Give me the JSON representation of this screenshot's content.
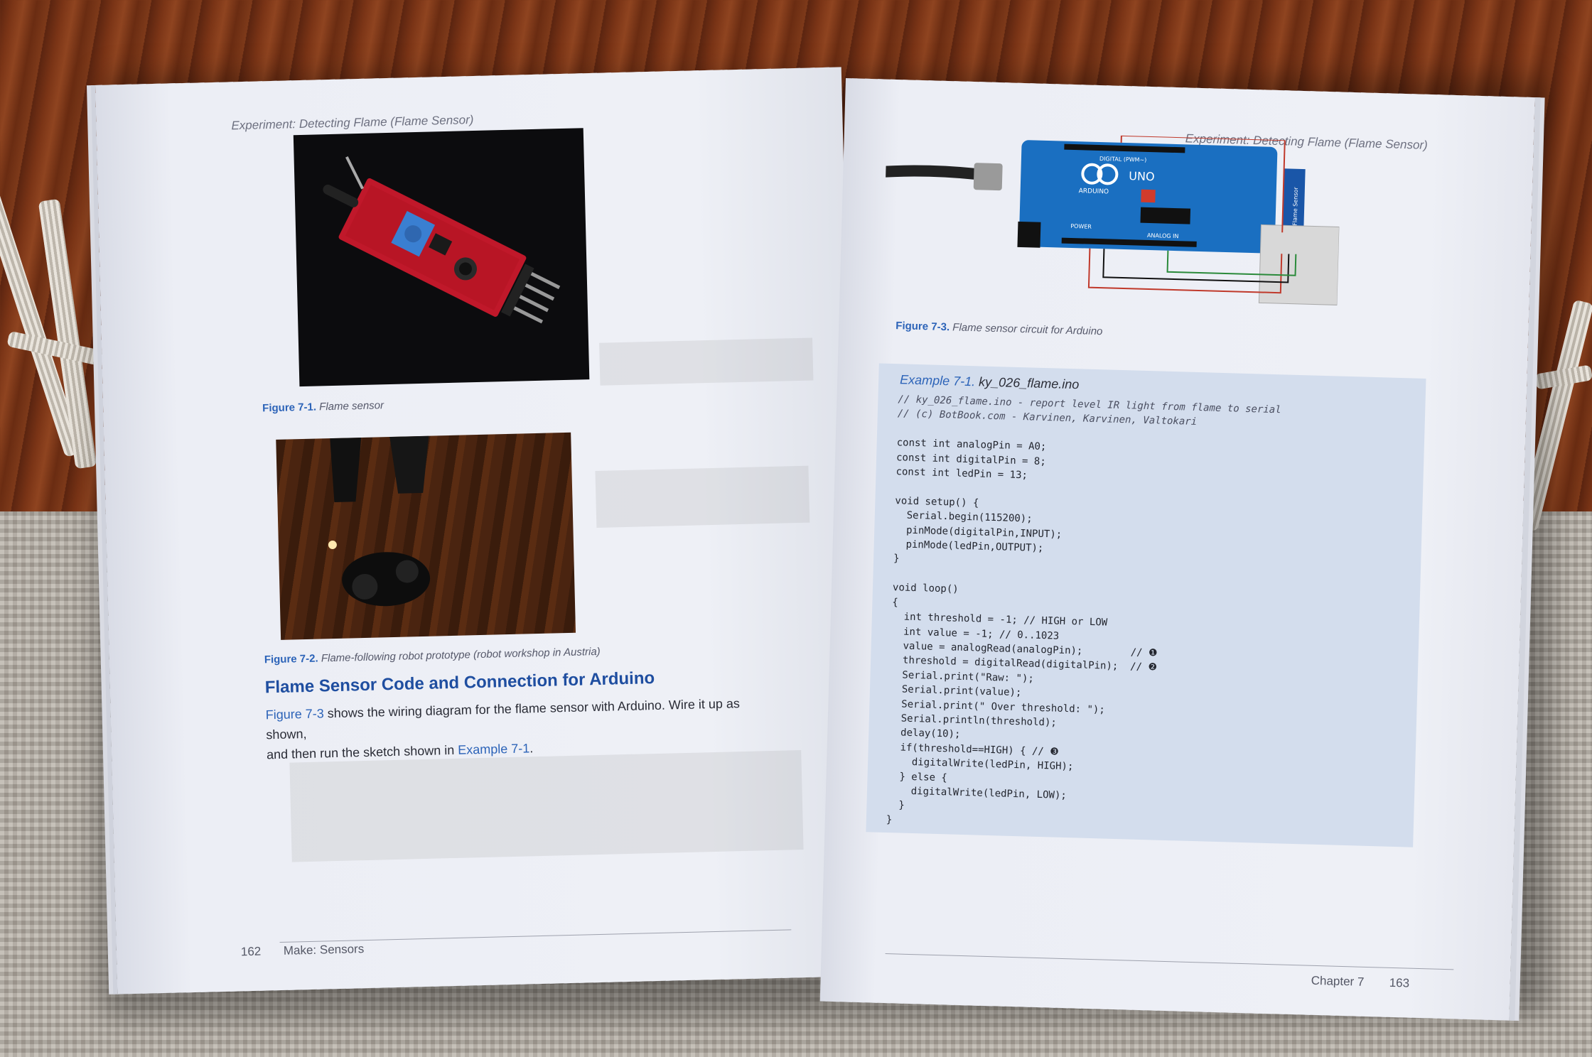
{
  "left_page": {
    "running_head": "Experiment: Detecting Flame (Flame Sensor)",
    "figure1": {
      "label": "Figure 7-1.",
      "caption": "Flame sensor"
    },
    "figure2": {
      "label": "Figure 7-2.",
      "caption": "Flame-following robot prototype (robot workshop in Austria)"
    },
    "section_heading": "Flame Sensor Code and Connection for Arduino",
    "body": {
      "link1": "Figure 7-3",
      "text1": " shows the wiring diagram for the flame sensor with Arduino. Wire it up as shown,",
      "text2": "and then run the sketch shown in ",
      "link2": "Example 7-1",
      "text3": "."
    },
    "page_number": "162",
    "book_title": "Make: Sensors"
  },
  "right_page": {
    "running_head": "Experiment: Detecting Flame (Flame Sensor)",
    "figure3": {
      "label": "Figure 7-3.",
      "caption": "Flame sensor circuit for Arduino"
    },
    "diagram_labels": {
      "board": "UNO",
      "brand": "ARDUINO",
      "digital": "DIGITAL (PWM~)",
      "power": "POWER",
      "analog": "ANALOG IN",
      "sensor": "Flame Sensor"
    },
    "example": {
      "label": "Example 7-1.",
      "filename": "ky_026_flame.ino"
    },
    "code_lines": [
      "// ky_026_flame.ino - report level IR light from flame to serial",
      "// (c) BotBook.com - Karvinen, Karvinen, Valtokari",
      "",
      "const int analogPin = A0;",
      "const int digitalPin = 8;",
      "const int ledPin = 13;",
      "",
      "void setup() {",
      "  Serial.begin(115200);",
      "  pinMode(digitalPin,INPUT);",
      "  pinMode(ledPin,OUTPUT);",
      "}",
      "",
      "void loop()",
      "{",
      "  int threshold = -1; // HIGH or LOW",
      "  int value = -1; // 0..1023",
      "  value = analogRead(analogPin);        // ❶",
      "  threshold = digitalRead(digitalPin);  // ❷",
      "  Serial.print(\"Raw: \");",
      "  Serial.print(value);",
      "  Serial.print(\" Over threshold: \");",
      "  Serial.println(threshold);",
      "  delay(10);",
      "  if(threshold==HIGH) { // ❸",
      "    digitalWrite(ledPin, HIGH);",
      "  } else {",
      "    digitalWrite(ledPin, LOW);",
      "  }",
      "}"
    ],
    "chapter": "Chapter 7",
    "page_number": "163"
  }
}
